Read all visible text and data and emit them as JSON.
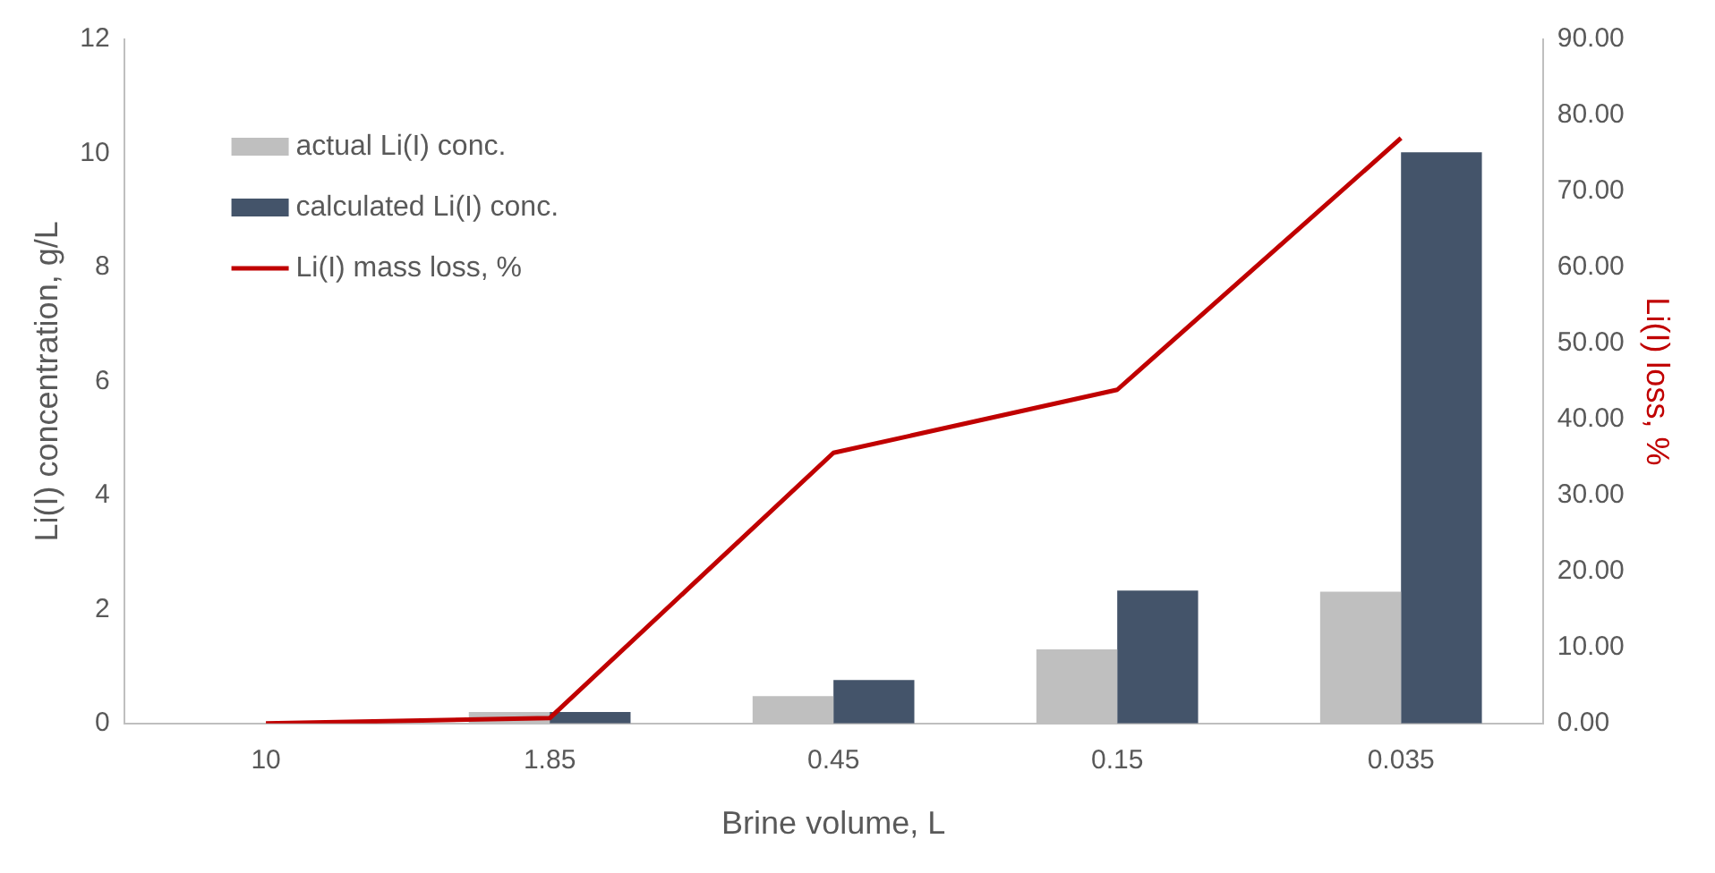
{
  "chart_data": {
    "type": "bar",
    "xlabel": "Brine volume, L",
    "ylabel": "Li(I) concentration, g/L",
    "y2label": "Li(I) loss, %",
    "categories": [
      "10",
      "1.85",
      "0.45",
      "0.15",
      "0.035"
    ],
    "series": [
      {
        "name": "actual Li(I) conc.",
        "color": "#bfbfbf",
        "values": [
          0,
          0.2,
          0.48,
          1.3,
          2.31
        ]
      },
      {
        "name": "calculated Li(I) conc.",
        "color": "#44546a",
        "values": [
          0,
          0.2,
          0.76,
          2.33,
          10.02
        ]
      },
      {
        "name": "Li(I) mass loss, %",
        "type": "line",
        "axis": "y2",
        "color": "#c00000",
        "values": [
          0,
          0.7,
          35.6,
          43.9,
          77.0
        ]
      }
    ],
    "ylim": [
      0,
      12
    ],
    "yticks": [
      0,
      2,
      4,
      6,
      8,
      10,
      12
    ],
    "y2lim": [
      0,
      90
    ],
    "y2ticks": [
      {
        "value": 0,
        "label": "0.00"
      },
      {
        "value": 10,
        "label": "10.00"
      },
      {
        "value": 20,
        "label": "20.00"
      },
      {
        "value": 30,
        "label": "30.00"
      },
      {
        "value": 40,
        "label": "40.00"
      },
      {
        "value": 50,
        "label": "50.00"
      },
      {
        "value": 60,
        "label": "60.00"
      },
      {
        "value": 70,
        "label": "70.00"
      },
      {
        "value": 80,
        "label": "80.00"
      },
      {
        "value": 90,
        "label": "90.00"
      }
    ],
    "grid": false,
    "legend": "top left",
    "marker": "none"
  }
}
